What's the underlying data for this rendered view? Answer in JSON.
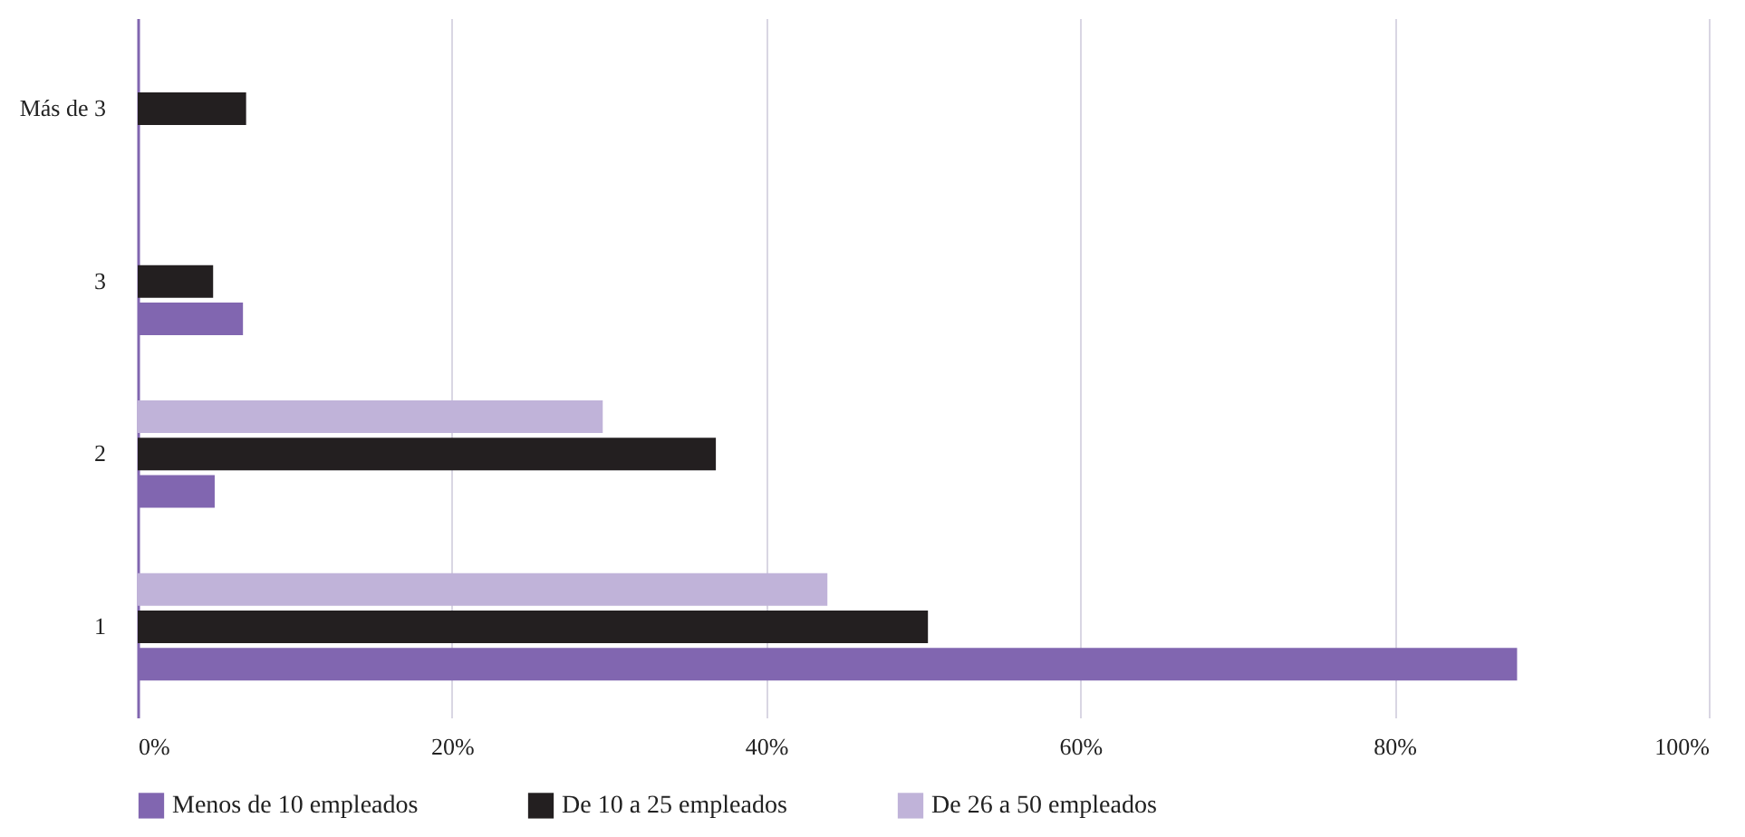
{
  "chart_data": {
    "type": "bar",
    "orientation": "horizontal",
    "categories": [
      "Más de 3",
      "3",
      "2",
      "1"
    ],
    "series": [
      {
        "name": "Menos de 10 empleados",
        "color": "#8166b0",
        "values": [
          null,
          6.7,
          4.9,
          87.8
        ]
      },
      {
        "name": "De 10 a 25 empleados",
        "color": "#231f20",
        "values": [
          6.9,
          4.8,
          36.8,
          50.3
        ]
      },
      {
        "name": "De 26 a 50 empleados",
        "color": "#c0b3d9",
        "values": [
          null,
          null,
          29.6,
          43.9
        ]
      }
    ],
    "xlim": [
      0,
      100
    ],
    "xticks": [
      {
        "value": 0,
        "label": "0%"
      },
      {
        "value": 20,
        "label": "20%"
      },
      {
        "value": 40,
        "label": "40%"
      },
      {
        "value": 60,
        "label": "60%"
      },
      {
        "value": 80,
        "label": "80%"
      },
      {
        "value": 100,
        "label": "100%"
      }
    ],
    "grid": "x",
    "legend": "bottom"
  }
}
